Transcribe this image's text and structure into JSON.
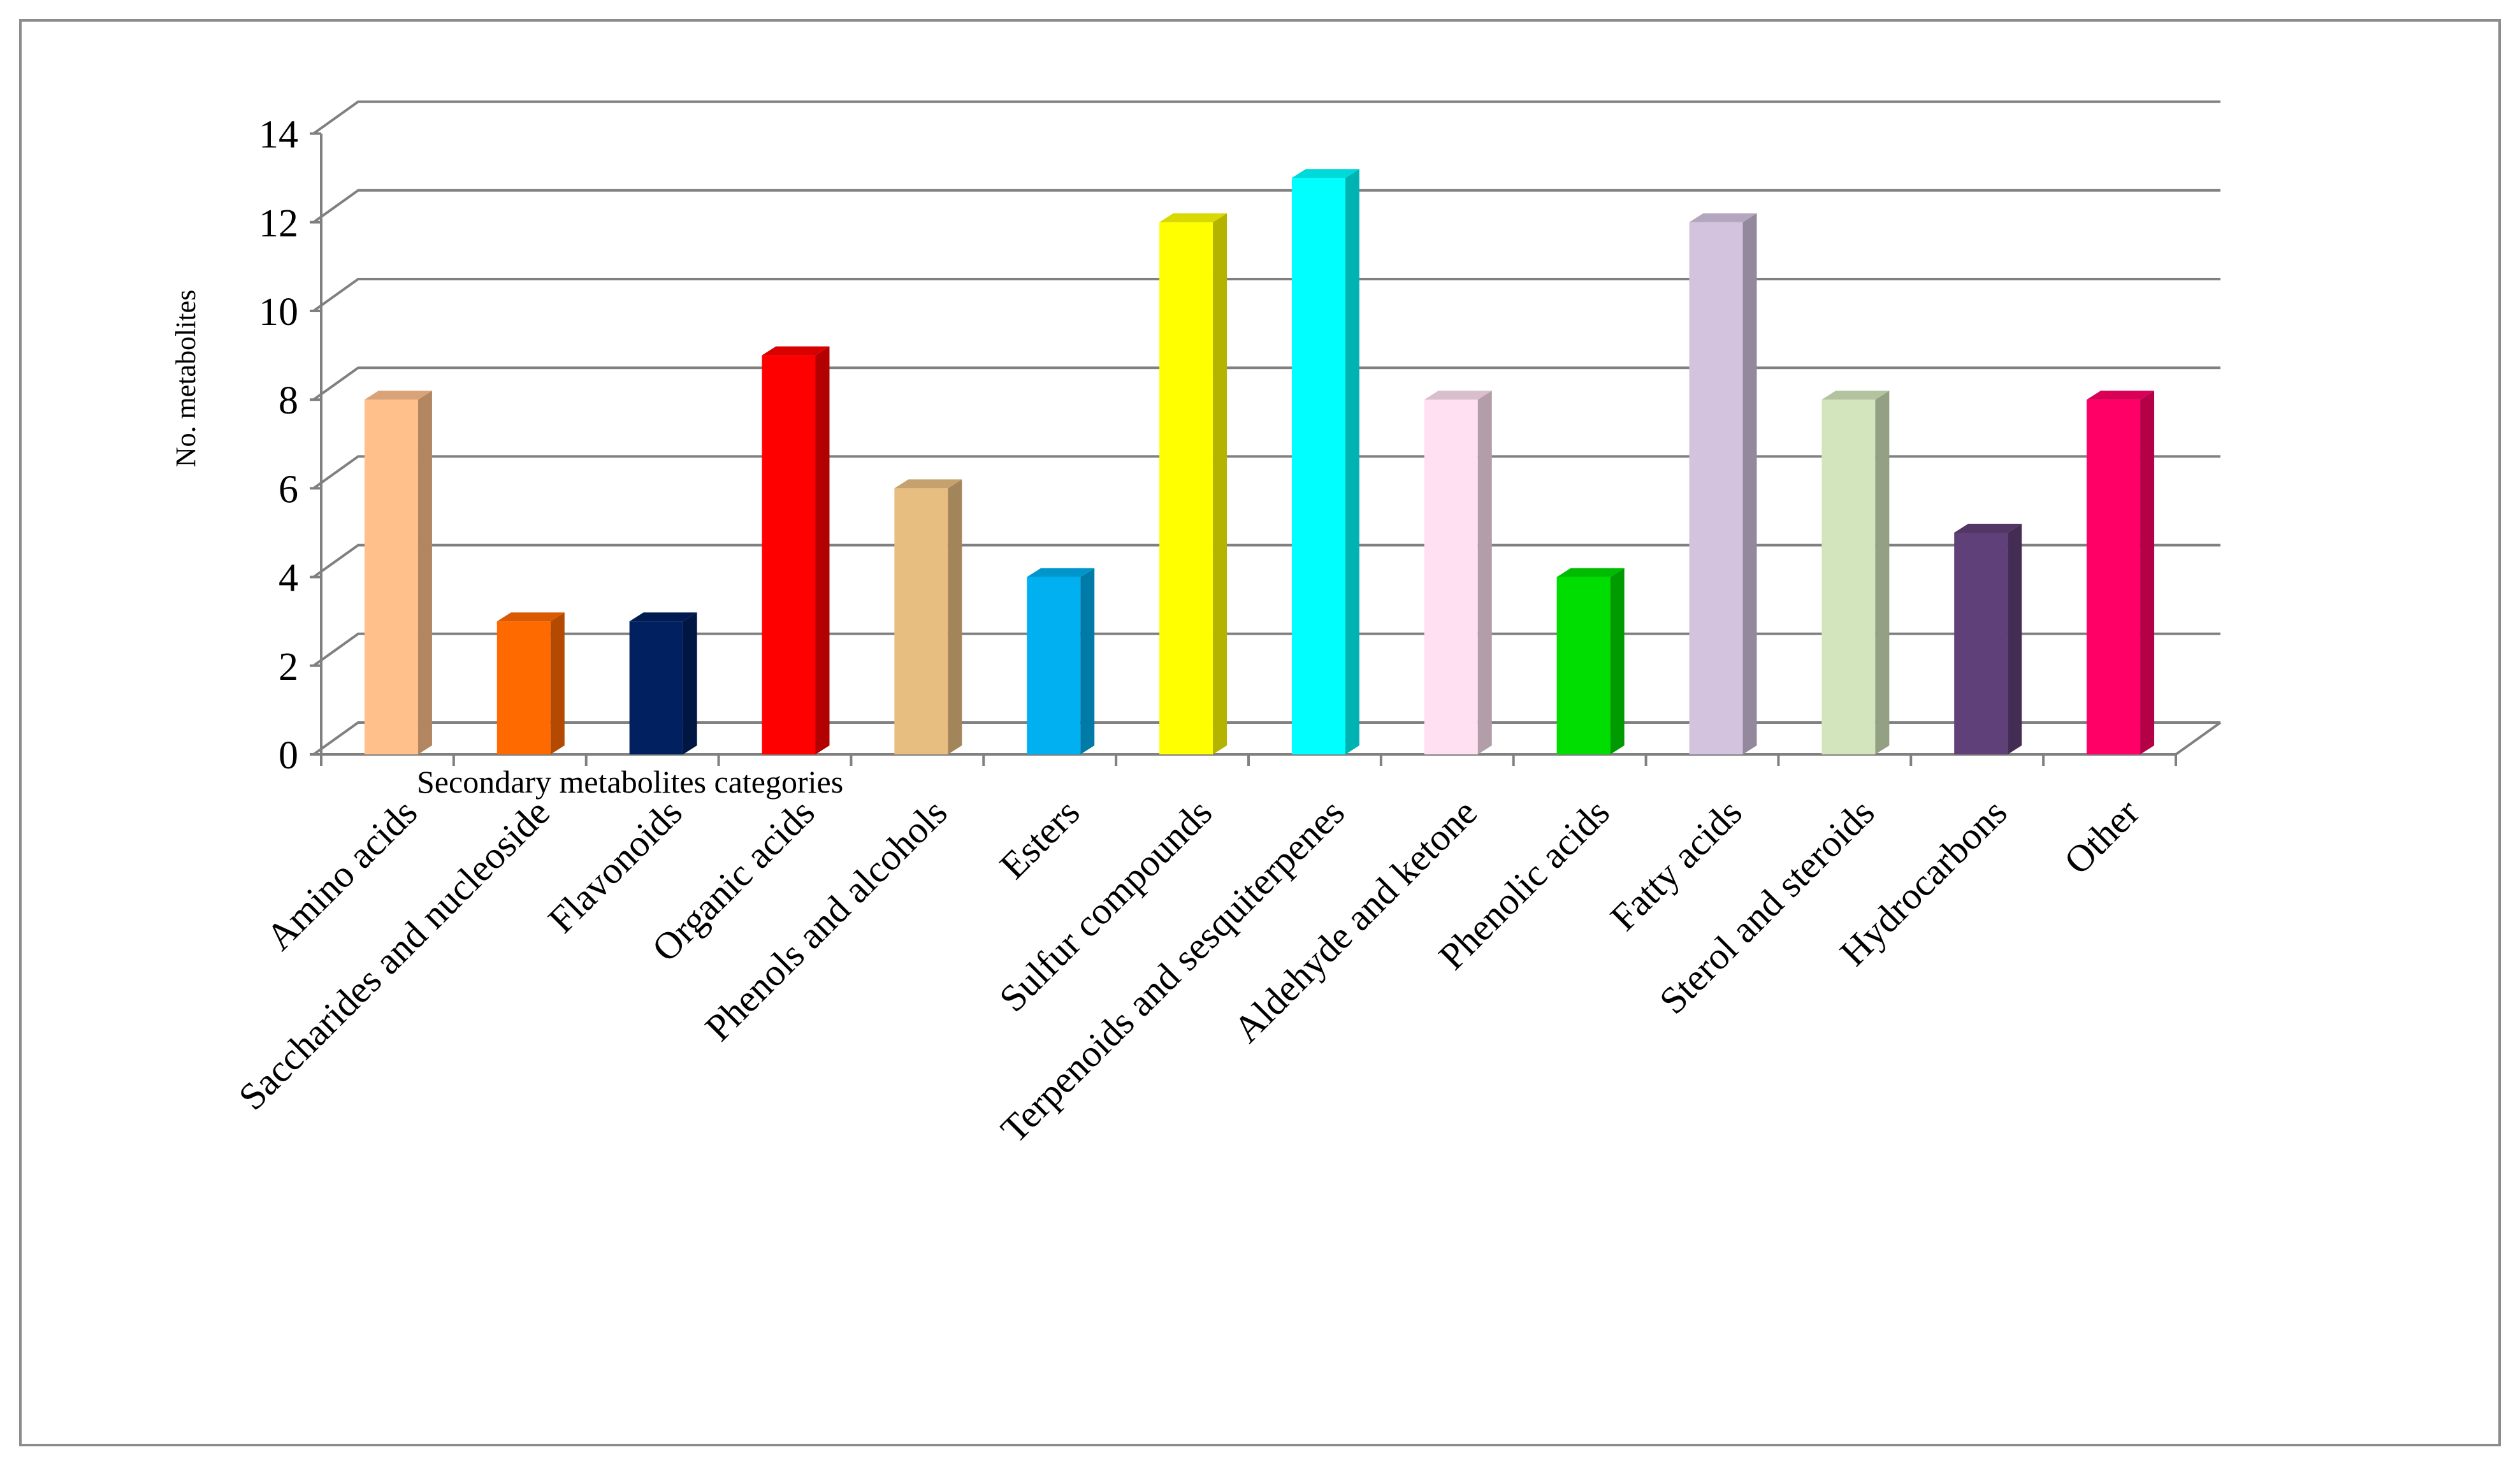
{
  "chart_data": {
    "type": "bar",
    "style": "3d-column",
    "title": "",
    "xlabel": "Secondary metabolites categories",
    "ylabel": "No. metabolites",
    "ylim": [
      0,
      14
    ],
    "yticks": [
      0,
      2,
      4,
      6,
      8,
      10,
      12,
      14
    ],
    "grid": true,
    "legend": "none",
    "categories": [
      "Amino acids",
      "Saccharides and nucleoside",
      "Flavonoids",
      "Organic acids",
      "Phenols and alcohols",
      "Esters",
      "Sulfur compounds",
      "Terpenoids and sesquiterpenes",
      "Aldehyde and ketone",
      "Phenolic acids",
      "Fatty acids",
      "Sterol and steroids",
      "Hydrocarbons",
      "Other"
    ],
    "values": [
      8,
      3,
      3,
      9,
      6,
      4,
      12,
      13,
      8,
      4,
      12,
      8,
      5,
      8
    ],
    "colors": [
      "#FFC08C",
      "#FF6A00",
      "#002060",
      "#FF0000",
      "#E8BE80",
      "#00B0F0",
      "#FFFF00",
      "#00FFFF",
      "#FFE0F2",
      "#00DD00",
      "#D3C3DF",
      "#D3E5BC",
      "#604078",
      "#FF0066"
    ]
  }
}
